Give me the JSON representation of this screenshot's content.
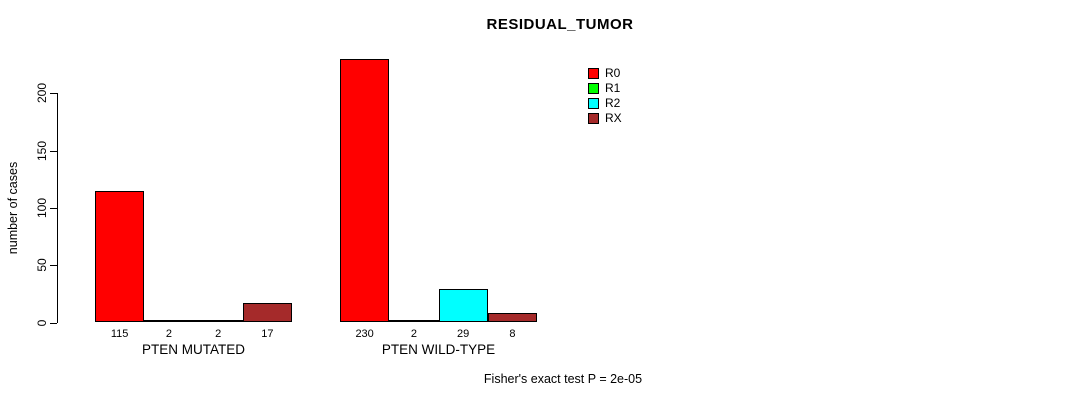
{
  "chart_data": {
    "type": "bar",
    "title": "RESIDUAL_TUMOR",
    "xlabel": "",
    "ylabel": "number of cases",
    "ylim": [
      0,
      230
    ],
    "yticks": [
      0,
      50,
      100,
      150,
      200
    ],
    "grid": false,
    "legend_position": "top-right",
    "groups": [
      {
        "label": "PTEN MUTATED",
        "values": [
          115,
          2,
          2,
          17
        ]
      },
      {
        "label": "PTEN WILD-TYPE",
        "values": [
          230,
          2,
          29,
          8
        ]
      }
    ],
    "series": [
      {
        "name": "R0",
        "color": "#FF0000"
      },
      {
        "name": "R1",
        "color": "#00FF00"
      },
      {
        "name": "R2",
        "color": "#00FFFF"
      },
      {
        "name": "RX",
        "color": "#A52A2A"
      }
    ],
    "annotation": "Fisher's exact test P = 2e-05"
  }
}
